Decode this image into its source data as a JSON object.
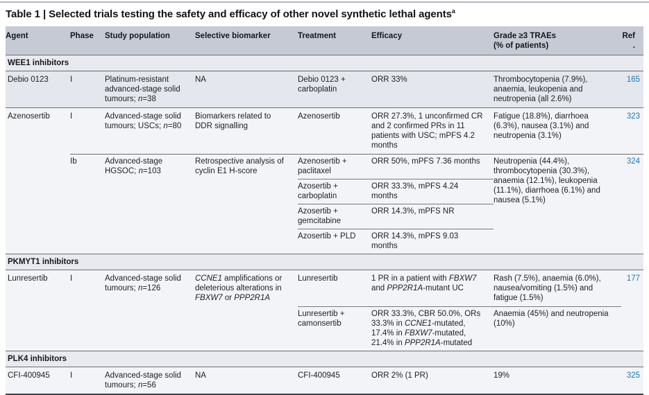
{
  "page": {
    "title": "Table 1 | Selected trials testing the safety and efficacy of other novel synthetic lethal agents",
    "title_superscript": "a"
  },
  "colors": {
    "header_bg": "#c5cad5",
    "section_bg": "#e8eaef",
    "shaded_row_bg": "#e4e7ed",
    "light_row_bg": "#f3f4f7",
    "ref_link_blue": "#1a79bb",
    "rule_dark": "#696e76"
  },
  "header": {
    "agent": "Agent",
    "phase": "Phase",
    "study": "Study population",
    "biomarker": "Selective biomarker",
    "treatment": "Treatment",
    "efficacy": "Efficacy",
    "traes_line1": "Grade ≥3 TRAEs",
    "traes_line2": "(% of patients)",
    "ref": "Ref."
  },
  "sections": {
    "wee1": "WEE1 inhibitors",
    "pkmyt1": "PKMYT1 inhibitors",
    "plk4": "PLK4 inhibitors"
  },
  "rows": {
    "debio": {
      "agent": "Debio 0123",
      "phase": "I",
      "study": [
        {
          "t": "Platinum-resistant advanced-stage solid tumours; "
        },
        {
          "t": "n",
          "i": true
        },
        {
          "t": "=38"
        }
      ],
      "biomarker": "NA",
      "treatment": "Debio 0123 + carboplatin",
      "efficacy": "ORR 33%",
      "traes": "Thrombocytopenia (7.9%), anaemia, leukopenia and neutropenia (all 2.6%)",
      "ref": "165"
    },
    "azeno_i": {
      "agent": "Azenosertib",
      "phase": "I",
      "study": [
        {
          "t": "Advanced-stage solid tumours; USCs; "
        },
        {
          "t": "n",
          "i": true
        },
        {
          "t": "=80"
        }
      ],
      "biomarker": "Biomarkers related to DDR signalling",
      "treatment": "Azenosertib",
      "efficacy": "ORR 27.3%, 1 unconfirmed CR and 2 confirmed PRs in 11 patients with USC; mPFS 4.2 months",
      "traes": "Fatigue (18.8%), diarrhoea (6.3%), nausea (3.1%) and neutropenia (3.1%)",
      "ref": "323"
    },
    "azeno_ib": {
      "phase": "Ib",
      "study": [
        {
          "t": "Advanced-stage HGSOC; "
        },
        {
          "t": "n",
          "i": true
        },
        {
          "t": "=103"
        }
      ],
      "biomarker": "Retrospective analysis of cyclin E1 H-score",
      "subrows": [
        {
          "treatment": "Azenosertib + paclitaxel",
          "efficacy": "ORR 50%, mPFS 7.36 months"
        },
        {
          "treatment": "Azosertib + carboplatin",
          "efficacy": "ORR 33.3%, mPFS 4.24 months"
        },
        {
          "treatment": "Azosertib + gemcitabine",
          "efficacy": "ORR 14.3%, mPFS NR"
        },
        {
          "treatment": "Azosertib + PLD",
          "efficacy": "ORR 14.3%, mPFS 9.03 months"
        }
      ],
      "traes": "Neutropenia (44.4%), thrombocytopenia (30.3%), anaemia (12.1%), leukopenia (11.1%), diarrhoea (6.1%) and nausea (5.1%)",
      "ref": "324"
    },
    "lunresertib": {
      "agent": "Lunresertib",
      "phase": "I",
      "study": [
        {
          "t": "Advanced-stage solid tumours; "
        },
        {
          "t": "n",
          "i": true
        },
        {
          "t": "=126"
        }
      ],
      "biomarker": [
        {
          "t": "CCNE1",
          "i": true
        },
        {
          "t": " amplifications or deleterious alterations in "
        },
        {
          "t": "FBXW7",
          "i": true
        },
        {
          "t": " or "
        },
        {
          "t": "PPP2R1A",
          "i": true
        }
      ],
      "subrows": [
        {
          "treatment": "Lunresertib",
          "efficacy": [
            {
              "t": "1 PR in a patient with "
            },
            {
              "t": "FBXW7",
              "i": true
            },
            {
              "t": " and "
            },
            {
              "t": "PPP2R1A",
              "i": true
            },
            {
              "t": "-mutant UC"
            }
          ],
          "traes": "Rash (7.5%), anaemia (6.0%), nausea/vomiting (1.5%) and fatigue (1.5%)"
        },
        {
          "treatment": "Lunresertib + camonsertib",
          "efficacy": [
            {
              "t": "ORR 33.3%, CBR 50.0%, ORs 33.3% in "
            },
            {
              "t": "CCNE1",
              "i": true
            },
            {
              "t": "-mutated, 17.4% in "
            },
            {
              "t": "FBXW7",
              "i": true
            },
            {
              "t": "-mutated, 21.4% in "
            },
            {
              "t": "PPP2R1A",
              "i": true
            },
            {
              "t": "-mutated"
            }
          ],
          "traes": "Anaemia (45%) and neutropenia (10%)"
        }
      ],
      "ref": "177"
    },
    "cfi": {
      "agent": "CFI-400945",
      "phase": "I",
      "study": [
        {
          "t": "Advanced-stage solid tumours; "
        },
        {
          "t": "n",
          "i": true
        },
        {
          "t": "=56"
        }
      ],
      "biomarker": "NA",
      "treatment": "CFI-400945",
      "efficacy": "ORR 2% (1 PR)",
      "traes": "19%",
      "ref": "325"
    }
  }
}
